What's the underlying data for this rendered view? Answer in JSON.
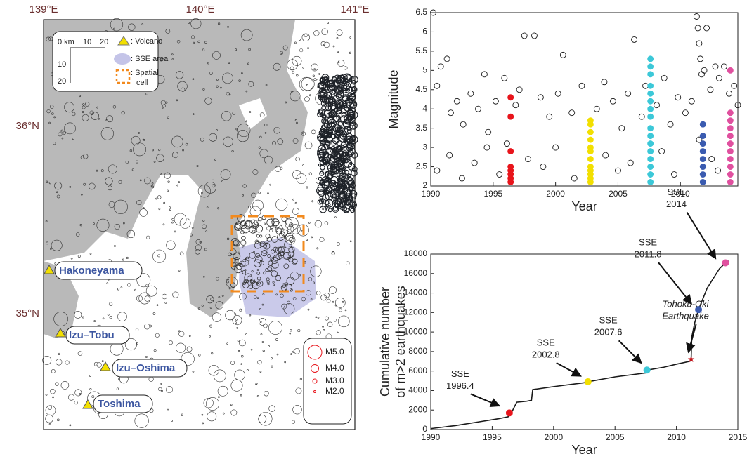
{
  "map": {
    "lon_labels": [
      "139°E",
      "140°E",
      "141°E"
    ],
    "lat_labels": [
      "36°N",
      "35°N"
    ],
    "scale_labels": [
      "0 km",
      "10",
      "20",
      "10",
      "20"
    ],
    "legend_items": [
      ": Volcano",
      ": SSE area",
      ": Spatial",
      "cell"
    ],
    "volcanoes": [
      "Hakoneyama",
      "Izu–Tobu",
      "Izu–Oshima",
      "Toshima"
    ],
    "magnitude_legend": [
      "M5.0",
      "M4.0",
      "M3.0",
      "M2.0"
    ]
  },
  "chart_data": [
    {
      "type": "scatter",
      "xlabel": "Year",
      "ylabel": "Magnitude",
      "xlim": [
        1990,
        2014.6
      ],
      "ylim": [
        2,
        6.5
      ],
      "xticks": [
        1990,
        1995,
        2000,
        2005,
        2010
      ],
      "yticks": [
        2,
        2.5,
        3,
        3.5,
        4,
        4.5,
        5,
        5.5,
        6,
        6.5
      ],
      "series": [
        {
          "color": "#1a1a1a",
          "filled": false,
          "x": [
            1990.2,
            1990.5,
            1990.8,
            1991.3,
            1991.6,
            1992.1,
            1992.6,
            1993.2,
            1993.8,
            1994.3,
            1994.6,
            1995.2,
            1995.9,
            1996.1,
            1996.8,
            1997.1,
            1997.5,
            1998.3,
            1998.8,
            1999.5,
            2000.2,
            2000.6,
            2001.3,
            2002.1,
            2003.3,
            2003.9,
            2004.6,
            2005.3,
            2005.8,
            2006.3,
            2006.9,
            2007.2,
            2008.1,
            2008.7,
            2009.2,
            2009.8,
            2010.4,
            2010.9,
            2011.3,
            2011.4,
            2011.5,
            2011.6,
            2011.7,
            2011.9,
            2012.1,
            2012.4,
            2012.8,
            2013.1,
            2013.5,
            2013.9,
            2014.3,
            2014.6,
            1990.5,
            1991.5,
            1992.5,
            1993.5,
            1994.5,
            1995.5,
            1997.8,
            1999,
            2000,
            2001.5,
            2004,
            2005,
            2006,
            2008.5,
            2009.5,
            2011.5,
            2012.5,
            2013
          ],
          "values": [
            6.5,
            4.6,
            5.1,
            5.3,
            3.9,
            4.2,
            3.6,
            4.4,
            4.0,
            4.9,
            3.4,
            4.2,
            4.8,
            3.1,
            4.1,
            4.5,
            5.9,
            5.9,
            4.3,
            3.8,
            4.4,
            5.4,
            3.9,
            4.6,
            4.0,
            4.7,
            4.2,
            3.5,
            4.4,
            5.8,
            3.8,
            4.6,
            4.1,
            4.8,
            3.6,
            4.3,
            3.9,
            4.2,
            6.4,
            6.1,
            5.7,
            5.3,
            4.9,
            5.0,
            6.1,
            4.5,
            5.1,
            4.8,
            5.1,
            4.4,
            4.6,
            4.1,
            2.4,
            2.8,
            2.2,
            2.6,
            3.0,
            2.3,
            2.7,
            2.5,
            3.0,
            2.2,
            2.8,
            2.4,
            2.6,
            2.9,
            2.3,
            3.2,
            2.7,
            2.4
          ]
        },
        {
          "color": "#e8141b",
          "filled": true,
          "x": [
            1996.4,
            1996.4,
            1996.4,
            1996.4,
            1996.4,
            1996.4,
            1996.4,
            1996.4
          ],
          "values": [
            2.1,
            2.2,
            2.3,
            2.4,
            2.5,
            2.9,
            3.8,
            4.3
          ]
        },
        {
          "color": "#f2df00",
          "filled": true,
          "x": [
            2002.8,
            2002.8,
            2002.8,
            2002.8,
            2002.8,
            2002.8,
            2002.8,
            2002.8,
            2002.8,
            2002.8,
            2002.8,
            2002.8
          ],
          "values": [
            2.1,
            2.2,
            2.3,
            2.4,
            2.5,
            2.7,
            2.9,
            3.0,
            3.2,
            3.4,
            3.6,
            3.7
          ]
        },
        {
          "color": "#3cc8d8",
          "filled": true,
          "x": [
            2007.6,
            2007.6,
            2007.6,
            2007.6,
            2007.6,
            2007.6,
            2007.6,
            2007.6,
            2007.6,
            2007.6,
            2007.6,
            2007.6,
            2007.6,
            2007.6,
            2007.6,
            2007.6
          ],
          "values": [
            2.1,
            2.3,
            2.5,
            2.7,
            2.9,
            3.1,
            3.3,
            3.5,
            3.8,
            4.0,
            4.2,
            4.4,
            4.6,
            4.9,
            5.1,
            5.3
          ]
        },
        {
          "color": "#3a5bb0",
          "filled": true,
          "x": [
            2011.8,
            2011.8,
            2011.8,
            2011.8,
            2011.8,
            2011.8,
            2011.8,
            2011.8
          ],
          "values": [
            2.1,
            2.3,
            2.5,
            2.7,
            2.9,
            3.1,
            3.3,
            3.6
          ]
        },
        {
          "color": "#e0509f",
          "filled": true,
          "x": [
            2014,
            2014,
            2014,
            2014,
            2014,
            2014,
            2014,
            2014,
            2014,
            2014,
            2014
          ],
          "values": [
            2.1,
            2.3,
            2.5,
            2.7,
            2.9,
            3.1,
            3.3,
            3.5,
            3.7,
            3.9,
            5.0
          ]
        }
      ]
    },
    {
      "type": "line",
      "xlabel": "Year",
      "ylabel": [
        "Cumulative number",
        "of m>2 earthquakes"
      ],
      "xlim": [
        1990,
        2015
      ],
      "ylim": [
        0,
        18000
      ],
      "xticks": [
        1990,
        1995,
        2000,
        2005,
        2010,
        2015
      ],
      "yticks": [
        0,
        2000,
        4000,
        6000,
        8000,
        10000,
        12000,
        14000,
        16000,
        18000
      ],
      "color": "#1a1a1a",
      "x": [
        1990,
        1992,
        1994,
        1995.5,
        1996.3,
        1996.4,
        1996.6,
        1997,
        1997.8,
        1998.2,
        1998.3,
        2000,
        2002.5,
        2002.8,
        2005,
        2007.5,
        2007.6,
        2009,
        2010,
        2011.1,
        2011.2,
        2011.25,
        2011.5,
        2011.8,
        2012.5,
        2013.5,
        2014,
        2014.3
      ],
      "values": [
        100,
        400,
        800,
        1100,
        1300,
        1700,
        1800,
        2800,
        2900,
        3000,
        4100,
        4400,
        4800,
        4900,
        5400,
        5800,
        6100,
        6400,
        6700,
        7000,
        7200,
        9500,
        11000,
        12300,
        14500,
        16500,
        17100,
        17300
      ],
      "points": [
        {
          "x": 1996.4,
          "value": 1700,
          "color": "#e8141b",
          "label": [
            "SSE",
            "1996.4"
          ]
        },
        {
          "x": 2002.8,
          "value": 4900,
          "color": "#f2df00",
          "label": [
            "SSE",
            "2002.8"
          ]
        },
        {
          "x": 2007.6,
          "value": 6100,
          "color": "#3cc8d8",
          "label": [
            "SSE",
            "2007.6"
          ]
        },
        {
          "x": 2011.2,
          "value": 7200,
          "color": "#c0141b",
          "marker": "star",
          "label": [
            "Tohoku-Oki",
            "Earthquake"
          ]
        },
        {
          "x": 2011.8,
          "value": 12300,
          "color": "#3a5bb0",
          "label": [
            "SSE",
            "2011.8"
          ]
        },
        {
          "x": 2014,
          "value": 17100,
          "color": "#e0509f",
          "label": [
            "SSE",
            "2014"
          ]
        }
      ]
    }
  ]
}
